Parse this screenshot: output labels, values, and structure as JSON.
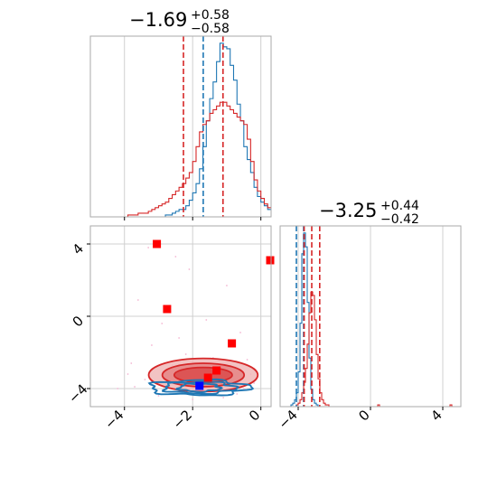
{
  "chart_data": [
    {
      "type": "histogram",
      "panel": "marginal-x",
      "title_main": "−1.69",
      "title_sup": "+0.58",
      "title_sub": "−0.58",
      "xlim": [
        -5,
        0.3
      ],
      "x_ticks": [
        -4,
        -2,
        0
      ],
      "grid": true,
      "series": [
        {
          "name": "",
          "color": "#1f77b4",
          "bin_start": -5,
          "bin_width": 0.1,
          "counts": [
            0,
            0,
            0,
            0,
            0,
            0,
            0,
            0,
            0,
            0,
            0,
            0,
            0,
            0,
            0,
            0,
            0,
            0,
            0,
            0,
            0,
            0,
            1,
            1,
            2,
            3,
            4,
            4,
            6,
            9,
            13,
            18,
            26,
            38,
            52,
            64,
            73,
            84,
            94,
            92,
            91,
            82,
            74,
            61,
            52,
            38,
            31,
            24,
            16,
            11,
            8,
            6,
            4,
            3,
            2,
            1,
            1,
            0,
            0,
            0,
            0,
            0,
            0
          ]
        },
        {
          "name": "",
          "color": "#d62728",
          "bin_start": -5,
          "bin_width": 0.1,
          "counts": [
            0,
            0,
            0,
            0,
            0,
            0,
            0,
            0,
            0,
            0,
            0,
            1,
            1,
            1,
            2,
            2,
            2,
            3,
            4,
            5,
            6,
            7,
            8,
            10,
            12,
            14,
            16,
            18,
            21,
            24,
            30,
            38,
            46,
            50,
            52,
            56,
            58,
            60,
            62,
            62,
            60,
            58,
            56,
            54,
            52,
            50,
            42,
            30,
            20,
            14,
            10,
            7,
            5,
            4,
            3,
            2,
            2,
            1,
            1,
            1,
            0,
            0,
            0
          ]
        }
      ],
      "vlines": [
        {
          "x": -2.27,
          "color": "#d62728",
          "style": "dashed"
        },
        {
          "x": -1.69,
          "color": "#1f77b4",
          "style": "dashed"
        },
        {
          "x": -1.11,
          "color": "#d62728",
          "style": "dashed"
        }
      ]
    },
    {
      "type": "histogram",
      "panel": "marginal-y",
      "title_main": "−3.25",
      "title_sup": "+0.44",
      "title_sub": "−0.42",
      "xlim": [
        -5,
        5
      ],
      "x_ticks": [
        -4,
        0,
        4
      ],
      "grid": true,
      "series": [
        {
          "name": "",
          "color": "#1f77b4",
          "bin_start": -5,
          "bin_width": 0.1,
          "counts": [
            0,
            0,
            0,
            0,
            0,
            0,
            1,
            2,
            4,
            8,
            20,
            48,
            88,
            100,
            92,
            60,
            28,
            10,
            4,
            2,
            1,
            0,
            0,
            0,
            0,
            0,
            0,
            0,
            0,
            0,
            0,
            0,
            0,
            0,
            0,
            0,
            0,
            0,
            0,
            0,
            0,
            0,
            0,
            0,
            0,
            0,
            0,
            0,
            0,
            0,
            0,
            0,
            0,
            0,
            0,
            0,
            0,
            0,
            0,
            0,
            0,
            0,
            0,
            0,
            0,
            0,
            0,
            0,
            0,
            0,
            0,
            0,
            0,
            0,
            0,
            0,
            0,
            0,
            0,
            0,
            0,
            0,
            0,
            0,
            0,
            0,
            0,
            0,
            0,
            0,
            0,
            0,
            0,
            0,
            0,
            0,
            0,
            0,
            0,
            0
          ]
        },
        {
          "name": "",
          "color": "#d62728",
          "bin_start": -5,
          "bin_width": 0.1,
          "counts": [
            0,
            0,
            0,
            0,
            0,
            0,
            0,
            0,
            0,
            1,
            2,
            4,
            8,
            14,
            22,
            36,
            54,
            66,
            64,
            50,
            30,
            16,
            8,
            4,
            2,
            1,
            1,
            0,
            0,
            0,
            0,
            0,
            0,
            0,
            0,
            0,
            0,
            0,
            0,
            0,
            0,
            0,
            0,
            0,
            0,
            0,
            0,
            0,
            0,
            0,
            0,
            0,
            0,
            0,
            1,
            0,
            0,
            0,
            0,
            0,
            0,
            0,
            0,
            0,
            0,
            0,
            0,
            0,
            0,
            0,
            0,
            0,
            0,
            0,
            0,
            0,
            0,
            0,
            0,
            0,
            0,
            0,
            0,
            0,
            0,
            0,
            0,
            0,
            0,
            0,
            0,
            0,
            0,
            0,
            1,
            0,
            0,
            0,
            0,
            0
          ]
        }
      ],
      "vlines": [
        {
          "x": -4.1,
          "color": "#1f77b4",
          "style": "dashed"
        },
        {
          "x": -3.7,
          "color": "#1f77b4",
          "style": "dashed"
        },
        {
          "x": -3.67,
          "color": "#d62728",
          "style": "dashed"
        },
        {
          "x": -3.25,
          "color": "#d62728",
          "style": "dashed"
        },
        {
          "x": -2.81,
          "color": "#d62728",
          "style": "dashed"
        }
      ]
    },
    {
      "type": "scatter",
      "panel": "joint",
      "xlim": [
        -5,
        0.3
      ],
      "ylim": [
        -5,
        5
      ],
      "x_ticks": [
        -4,
        -2,
        0
      ],
      "y_ticks": [
        -4,
        0,
        4
      ],
      "grid": true,
      "red_contours": {
        "color": "#d62728",
        "fill": "#e8a0a0",
        "center": [
          -1.69,
          -3.25
        ],
        "levels": [
          {
            "rx": 0.85,
            "ry": 0.42
          },
          {
            "rx": 1.2,
            "ry": 0.65
          },
          {
            "rx": 1.6,
            "ry": 0.92
          }
        ]
      },
      "blue_contours": {
        "color": "#1f77b4",
        "center": [
          -1.8,
          -3.95
        ],
        "levels": [
          {
            "rx": 0.6,
            "ry": 0.22
          },
          {
            "rx": 1.05,
            "ry": 0.32
          },
          {
            "rx": 1.45,
            "ry": 0.42
          }
        ]
      },
      "markers": [
        {
          "x": -3.05,
          "y": 4.0,
          "color": "#ff0000"
        },
        {
          "x": 0.3,
          "y": 3.1,
          "color": "#ff0000"
        },
        {
          "x": -2.75,
          "y": 0.4,
          "color": "#ff0000"
        },
        {
          "x": -0.85,
          "y": -1.5,
          "color": "#ff0000"
        },
        {
          "x": -1.55,
          "y": -3.4,
          "color": "#ff0000"
        },
        {
          "x": -1.3,
          "y": -3.0,
          "color": "#ff0000"
        },
        {
          "x": -1.8,
          "y": -3.85,
          "color": "#0000ff"
        }
      ],
      "pink_points": [
        [
          -3.3,
          3.8
        ],
        [
          -2.1,
          2.6
        ],
        [
          -1.0,
          1.7
        ],
        [
          -3.6,
          0.9
        ],
        [
          -2.9,
          -0.4
        ],
        [
          -0.6,
          -0.9
        ],
        [
          -3.2,
          -1.6
        ],
        [
          -2.2,
          -2.1
        ],
        [
          -0.4,
          -2.4
        ],
        [
          -3.8,
          -2.6
        ],
        [
          -2.6,
          -2.7
        ],
        [
          -0.3,
          -3.2
        ],
        [
          -3.4,
          -3.5
        ],
        [
          -2.8,
          -3.8
        ],
        [
          -0.5,
          -4.0
        ],
        [
          -3.0,
          -4.4
        ],
        [
          -1.1,
          -4.5
        ],
        [
          -2.4,
          -1.2
        ],
        [
          -1.6,
          -0.2
        ],
        [
          -0.9,
          -2.8
        ],
        [
          -3.7,
          -3.9
        ],
        [
          -0.2,
          -3.7
        ],
        [
          -2.0,
          -4.6
        ],
        [
          -1.4,
          -2.3
        ],
        [
          -4.2,
          -4.0
        ],
        [
          -3.9,
          -3.2
        ],
        [
          -0.7,
          -4.3
        ],
        [
          -2.5,
          3.3
        ]
      ]
    }
  ]
}
